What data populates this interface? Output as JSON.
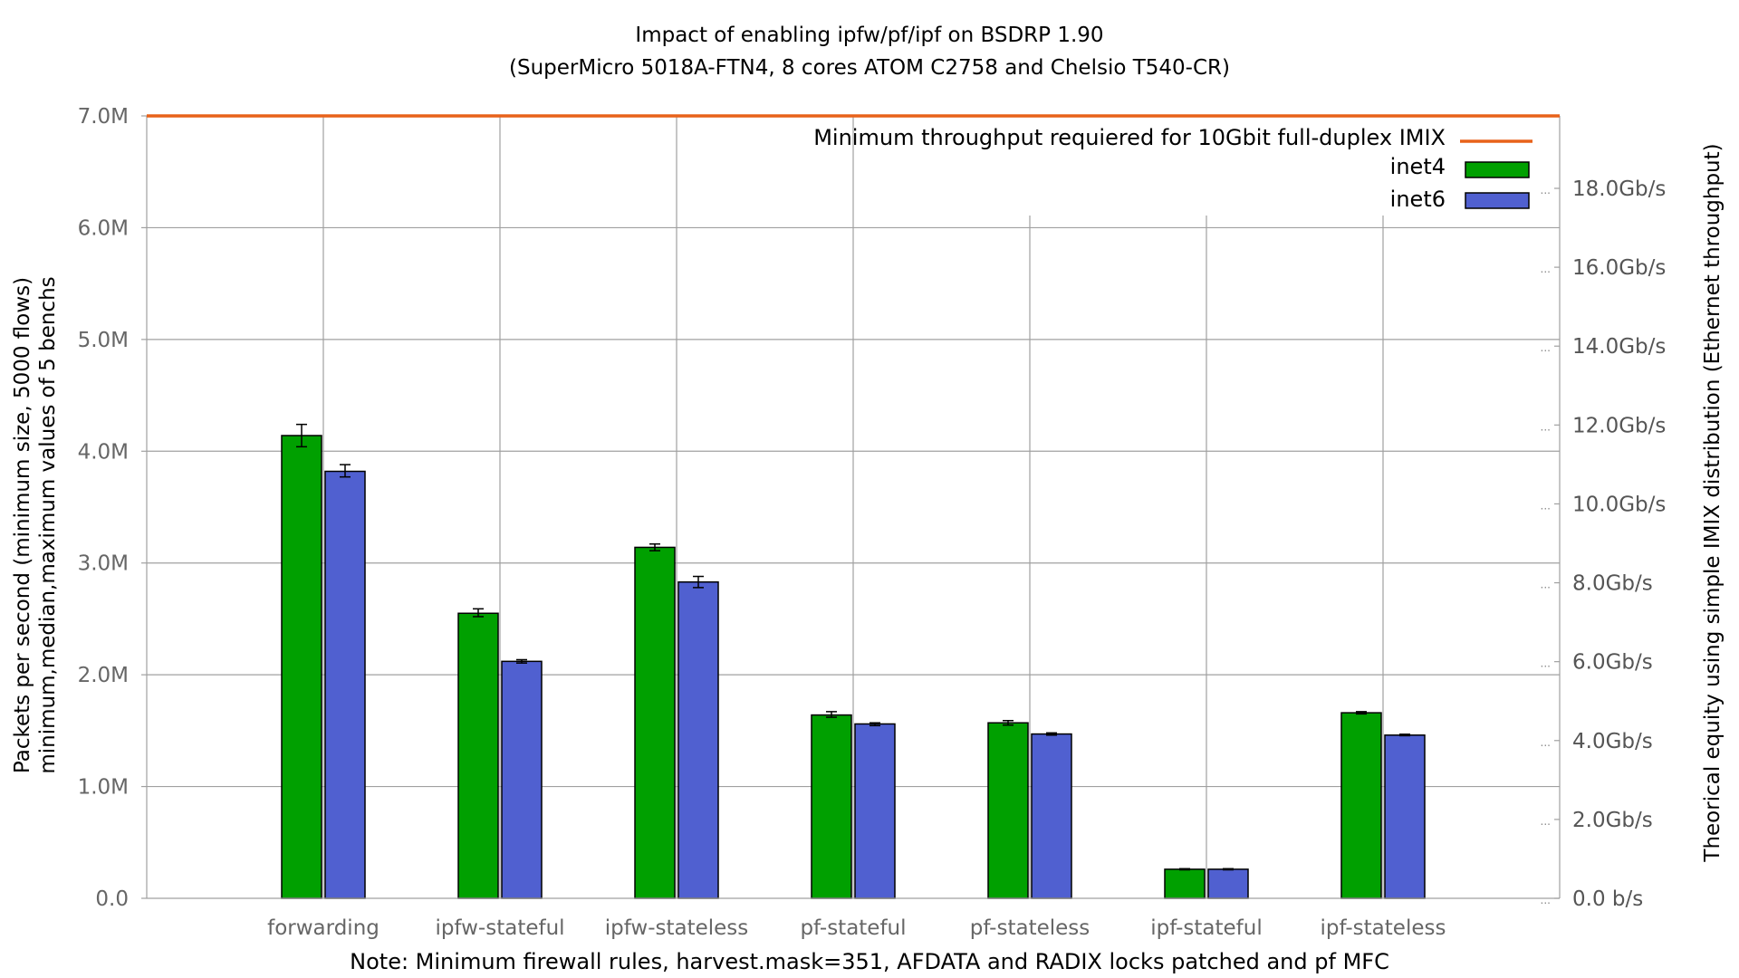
{
  "chart_data": {
    "type": "bar",
    "title": "Impact of enabling ipfw/pf/ipf on BSDRP 1.90",
    "subtitle": "(SuperMicro 5018A-FTN4, 8 cores ATOM C2758 and Chelsio T540-CR)",
    "note": "Note: Minimum firewall rules, harvest.mask=351, AFDATA and RADIX locks patched and pf MFC",
    "ylabel_line1": "Packets per second (minimum size, 5000 flows)",
    "ylabel_line2": "minimum,median,maximum values of 5 benchs",
    "y2label": "Theorical equity using simple IMIX distribution (Ethernet throughput)",
    "ylim": [
      0,
      7000000
    ],
    "yticks": [
      0,
      1000000,
      2000000,
      3000000,
      4000000,
      5000000,
      6000000,
      7000000
    ],
    "ytick_labels": [
      "0.0",
      "1.0M",
      "2.0M",
      "3.0M",
      "4.0M",
      "5.0M",
      "6.0M",
      "7.0M"
    ],
    "y2ticks_gbps": [
      0,
      2,
      4,
      6,
      8,
      10,
      12,
      14,
      16,
      18
    ],
    "y2tick_labels": [
      "0.0 b/s",
      "2.0Gb/s",
      "4.0Gb/s",
      "6.0Gb/s",
      "8.0Gb/s",
      "10.0Gb/s",
      "12.0Gb/s",
      "14.0Gb/s",
      "16.0Gb/s",
      "18.0Gb/s"
    ],
    "categories": [
      "forwarding",
      "ipfw-stateful",
      "ipfw-stateless",
      "pf-stateful",
      "pf-stateless",
      "ipf-stateful",
      "ipf-stateless"
    ],
    "series": [
      {
        "name": "inet4",
        "color": "#00a000",
        "values": [
          4140000,
          2550000,
          3140000,
          1640000,
          1570000,
          260000,
          1660000
        ],
        "min": [
          4040000,
          2520000,
          3110000,
          1620000,
          1550000,
          255000,
          1650000
        ],
        "max": [
          4240000,
          2590000,
          3170000,
          1670000,
          1590000,
          265000,
          1670000
        ]
      },
      {
        "name": "inet6",
        "color": "#5060d0",
        "values": [
          3820000,
          2120000,
          2830000,
          1560000,
          1470000,
          260000,
          1460000
        ],
        "min": [
          3770000,
          2105000,
          2780000,
          1545000,
          1460000,
          255000,
          1455000
        ],
        "max": [
          3880000,
          2135000,
          2880000,
          1570000,
          1480000,
          265000,
          1468000
        ]
      }
    ],
    "reference_line": {
      "label": "Minimum throughput requiered for 10Gbit full-duplex IMIX",
      "value": 7000000,
      "color": "#e8621a"
    },
    "legend_position": "top-right",
    "grid": true
  }
}
